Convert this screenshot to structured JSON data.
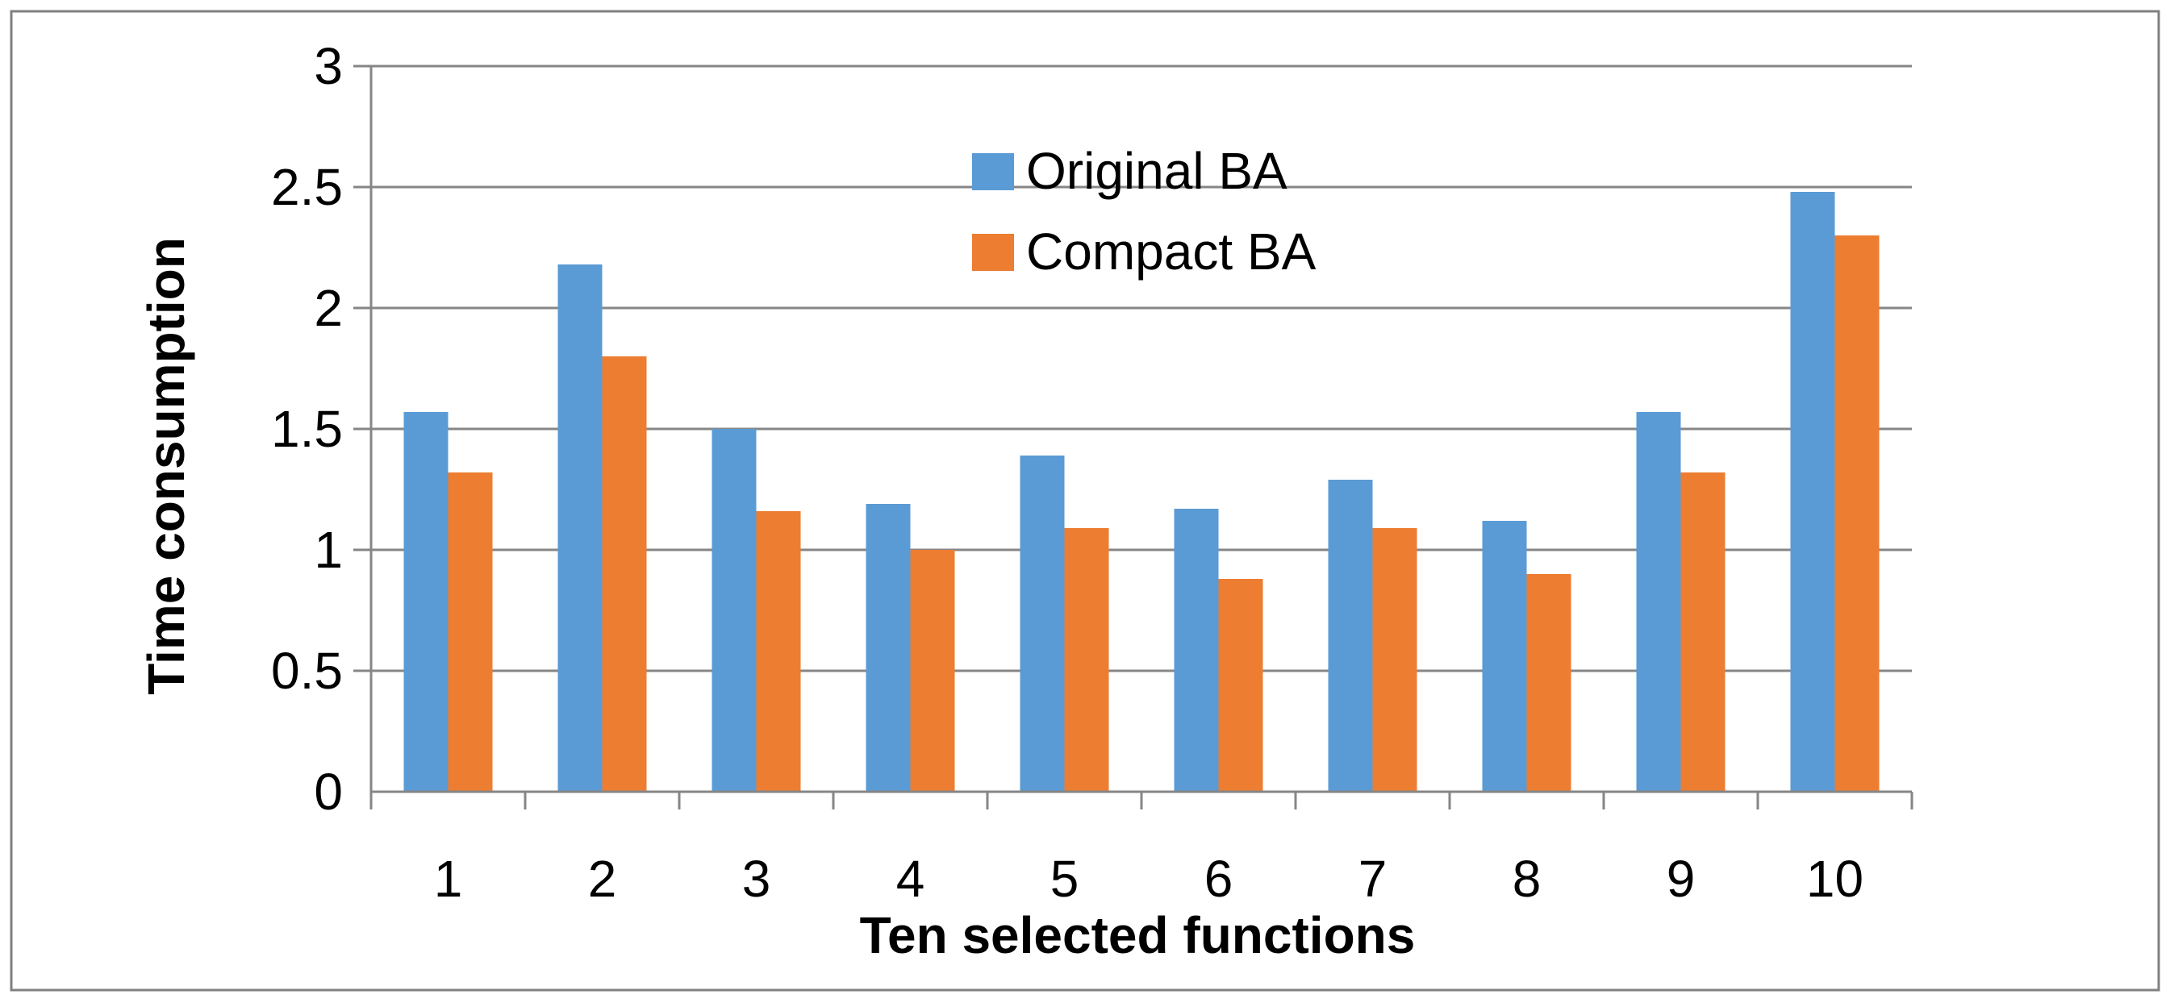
{
  "chart_data": {
    "type": "bar",
    "categories": [
      "1",
      "2",
      "3",
      "4",
      "5",
      "6",
      "7",
      "8",
      "9",
      "10"
    ],
    "series": [
      {
        "name": "Original BA",
        "color": "#5B9BD5",
        "values": [
          1.57,
          2.18,
          1.5,
          1.19,
          1.39,
          1.17,
          1.29,
          1.12,
          1.57,
          2.48
        ]
      },
      {
        "name": "Compact BA",
        "color": "#ED7D31",
        "values": [
          1.32,
          1.8,
          1.16,
          1.0,
          1.09,
          0.88,
          1.09,
          0.9,
          1.32,
          2.3
        ]
      }
    ],
    "xlabel": "Ten selected functions",
    "ylabel": "Time consumption",
    "ylim": [
      0,
      3
    ],
    "yticks": [
      "0",
      "0.5",
      "1",
      "1.5",
      "2",
      "2.5",
      "3"
    ],
    "grid": true,
    "legend_position": "top-center"
  }
}
